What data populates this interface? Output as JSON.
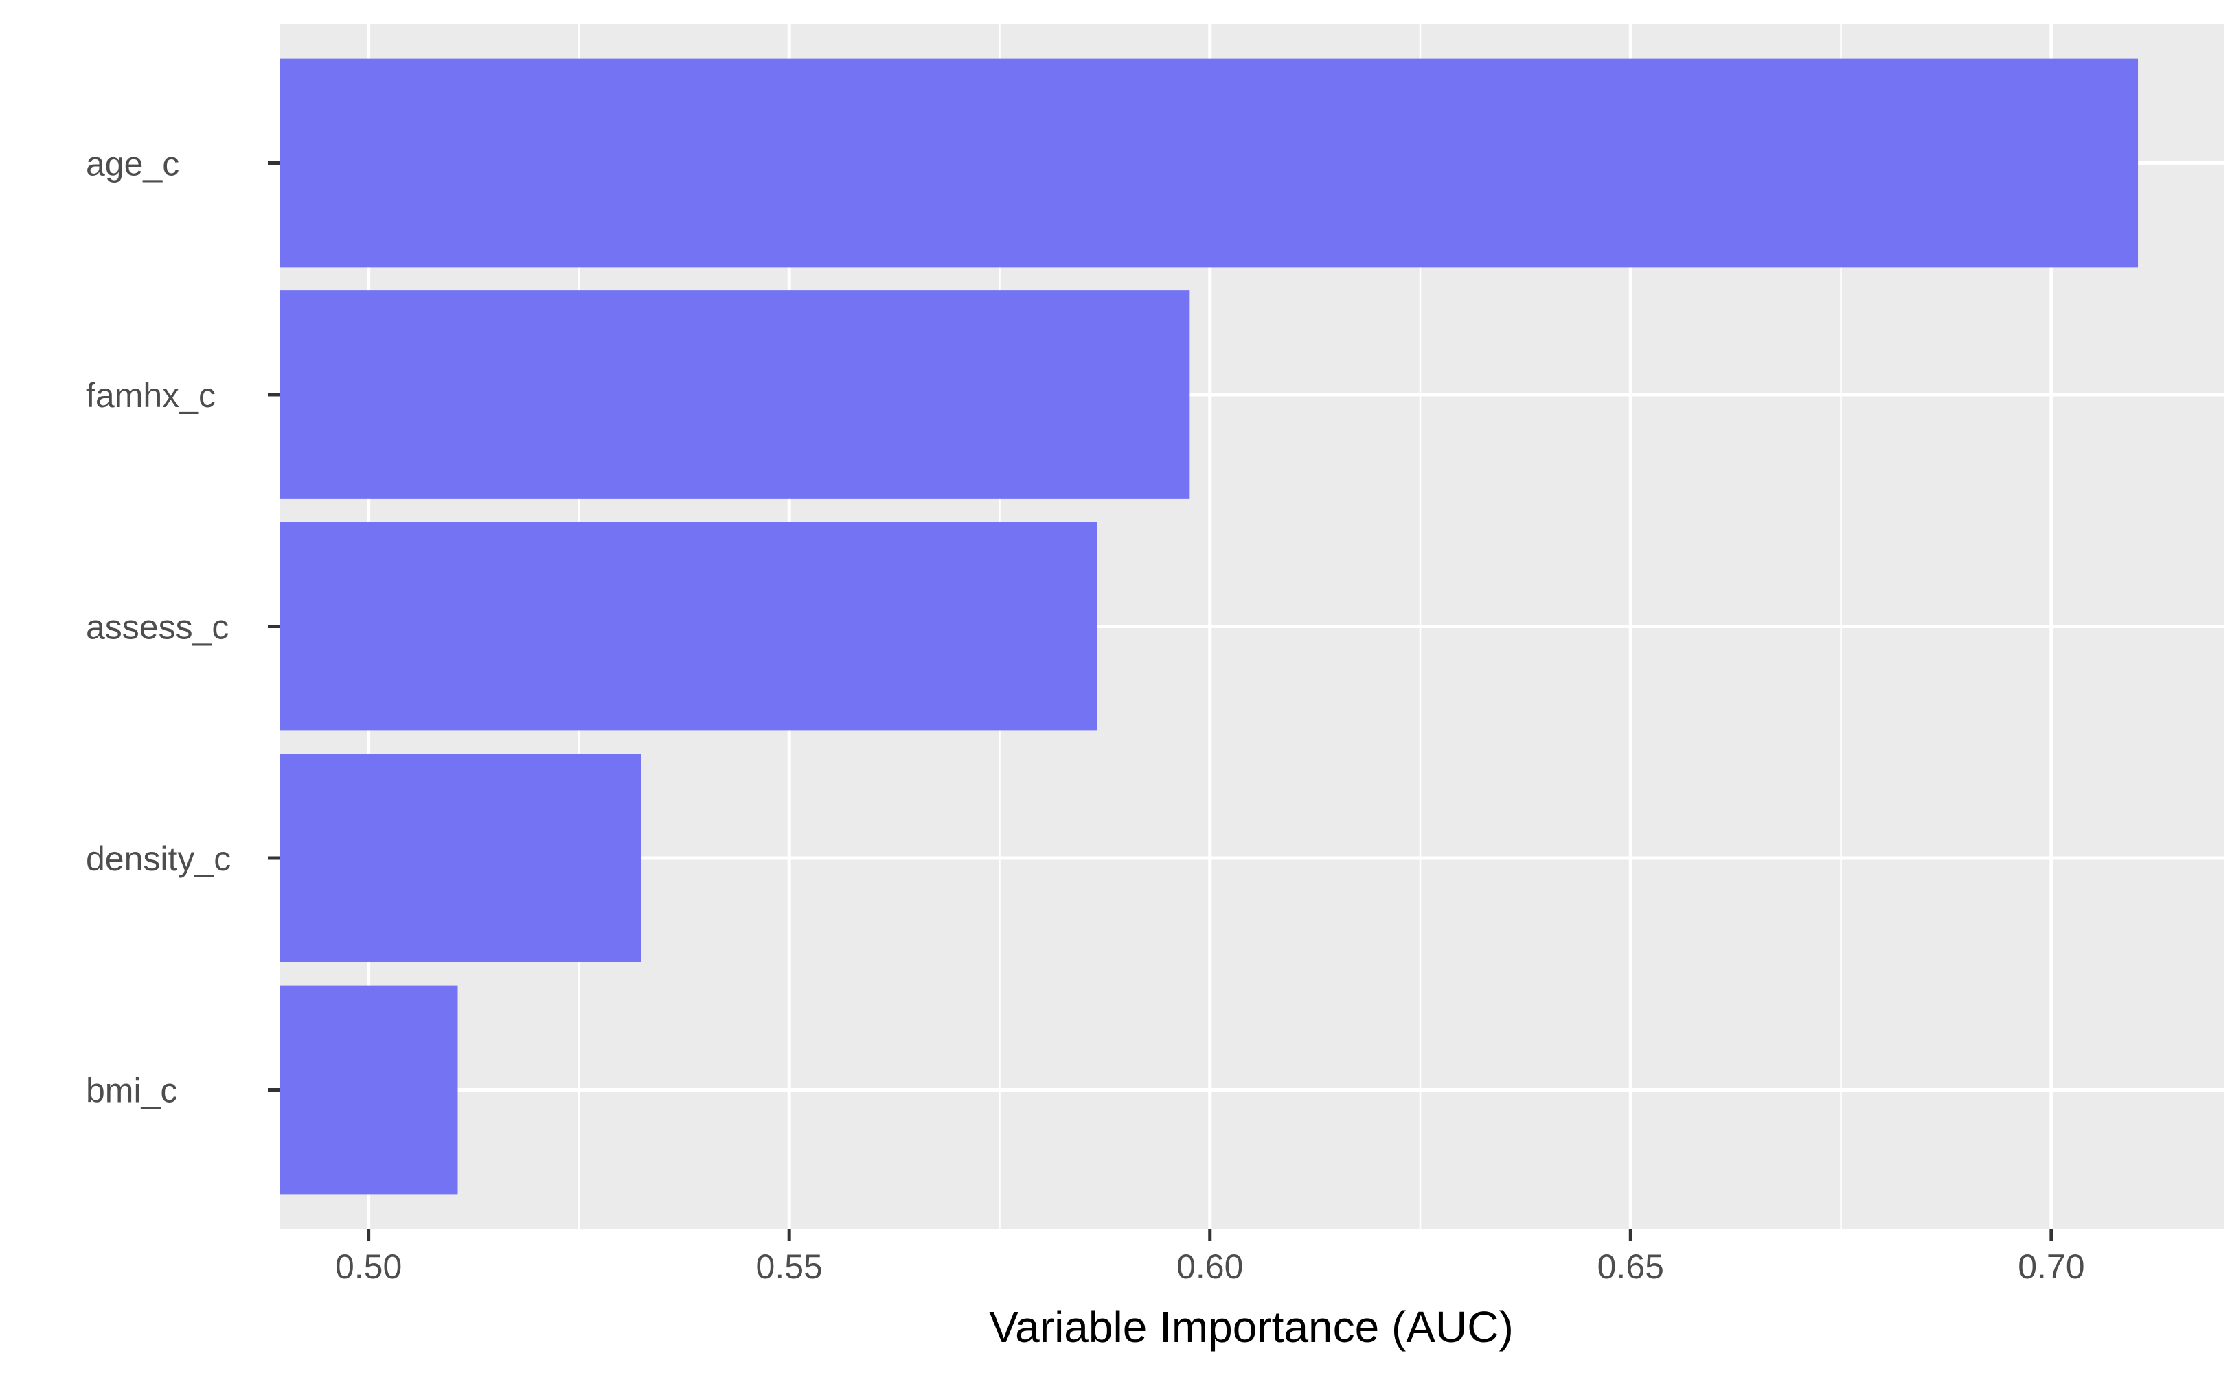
{
  "chart_data": {
    "type": "bar",
    "orientation": "horizontal",
    "categories": [
      "age_c",
      "famhx_c",
      "assess_c",
      "density_c",
      "bmi_c"
    ],
    "values": [
      0.7103,
      0.5976,
      0.5866,
      0.5324,
      0.5106
    ],
    "title": "",
    "xlabel": "Variable Importance (AUC)",
    "ylabel": "",
    "xlim": [
      0.4895,
      0.7205
    ],
    "xticks": [
      0.5,
      0.55,
      0.6,
      0.65,
      0.7
    ],
    "xtick_labels": [
      "0.50",
      "0.55",
      "0.60",
      "0.65",
      "0.70"
    ],
    "grid": true,
    "legend": "none",
    "colors": {
      "bar": "#7373F3",
      "panel": "#EBEBEB",
      "grid": "#FFFFFF",
      "tick": "#333333"
    }
  }
}
